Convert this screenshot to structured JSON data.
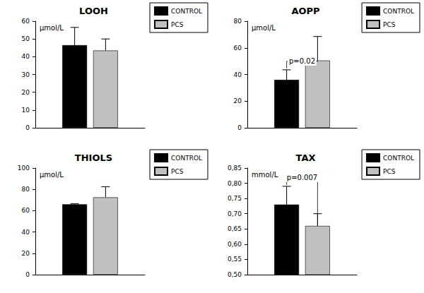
{
  "chart_data": [
    {
      "type": "bar",
      "title": "LOOH",
      "y_label": "µmol/L",
      "categories": [
        null
      ],
      "series": [
        {
          "name": "CONTROL",
          "color": "#000000",
          "values": [
            46.5
          ],
          "errors": [
            10
          ]
        },
        {
          "name": "PCS",
          "color": "#c0c0c0",
          "values": [
            43.5
          ],
          "errors": [
            6.5
          ]
        }
      ],
      "ylim": [
        0,
        60
      ],
      "yticks": [
        0,
        10,
        20,
        30,
        40,
        50,
        60
      ],
      "grid": false,
      "legend": "upper right",
      "tick_labels": "y"
    },
    {
      "type": "bar",
      "title": "AOPP",
      "y_label": "µmol/L",
      "categories": [
        null
      ],
      "series": [
        {
          "name": "CONTROL",
          "color": "#000000",
          "values": [
            36
          ],
          "errors": [
            7.5
          ]
        },
        {
          "name": "PCS",
          "color": "#c0c0c0",
          "values": [
            50.5
          ],
          "errors": [
            18
          ]
        }
      ],
      "ylim": [
        0,
        80
      ],
      "yticks": [
        0,
        20,
        40,
        60,
        80
      ],
      "annotations": [
        {
          "text": "p=0.02",
          "between": [
            "CONTROL",
            "PCS"
          ]
        }
      ],
      "grid": false,
      "legend": "upper right",
      "tick_labels": "y"
    },
    {
      "type": "bar",
      "title": "THIOLS",
      "y_label": "µmol/L",
      "categories": [
        null
      ],
      "series": [
        {
          "name": "CONTROL",
          "color": "#000000",
          "values": [
            66
          ],
          "errors": [
            0.5
          ]
        },
        {
          "name": "PCS",
          "color": "#c0c0c0",
          "values": [
            72.5
          ],
          "errors": [
            10
          ]
        }
      ],
      "ylim": [
        0,
        100
      ],
      "yticks": [
        0,
        20,
        40,
        60,
        80,
        100
      ],
      "grid": false,
      "legend": "upper right",
      "tick_labels": "y"
    },
    {
      "type": "bar",
      "title": "TAX",
      "y_label": "mmol/L",
      "categories": [
        null
      ],
      "series": [
        {
          "name": "CONTROL",
          "color": "#000000",
          "values": [
            0.73
          ],
          "errors": [
            0.06
          ]
        },
        {
          "name": "PCS",
          "color": "#c0c0c0",
          "values": [
            0.66
          ],
          "errors": [
            0.04
          ]
        }
      ],
      "ylim": [
        0.5,
        0.85
      ],
      "yticks": [
        {
          "value": 0.5,
          "label": "0,50"
        },
        {
          "value": 0.55,
          "label": "0,55"
        },
        {
          "value": 0.6,
          "label": "0,60"
        },
        {
          "value": 0.65,
          "label": "0,65"
        },
        {
          "value": 0.7,
          "label": "0,70"
        },
        {
          "value": 0.75,
          "label": "0,75"
        },
        {
          "value": 0.8,
          "label": "0,80"
        },
        {
          "value": 0.85,
          "label": "0,85"
        }
      ],
      "annotations": [
        {
          "text": "p=0.007",
          "between": [
            "CONTROL",
            "PCS"
          ]
        }
      ],
      "grid": false,
      "legend": "upper right",
      "tick_labels": "y"
    }
  ]
}
